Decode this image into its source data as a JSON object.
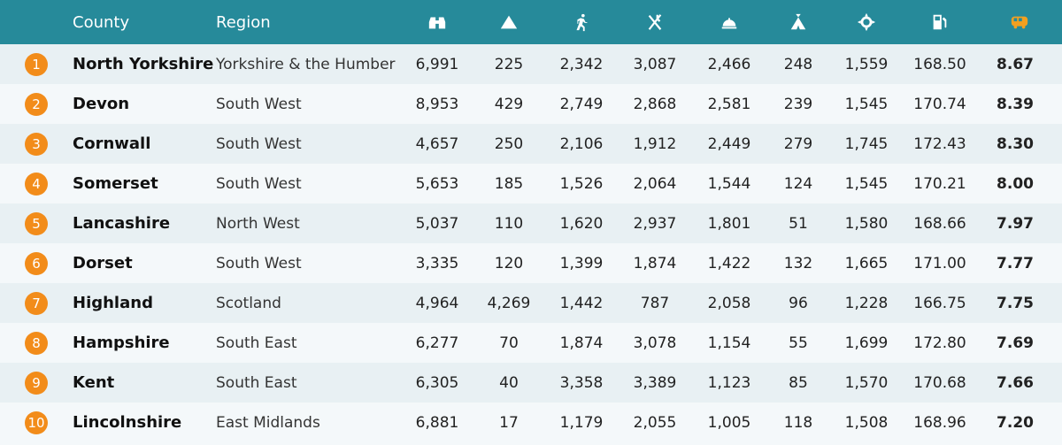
{
  "header": {
    "county": "County",
    "region": "Region",
    "icons": [
      "binoculars-icon",
      "mountain-icon",
      "running-icon",
      "restaurant-icon",
      "hotel-bell-icon",
      "tent-icon",
      "sun-icon",
      "fuel-pump-icon",
      "campervan-icon"
    ],
    "accent": "#268a9a",
    "badge_color": "#f28c1a",
    "score_icon_color": "#f2a020"
  },
  "rows": [
    {
      "rank": "1",
      "county": "North Yorkshire",
      "region": "Yorkshire & the Humber",
      "v": [
        "6,991",
        "225",
        "2,342",
        "3,087",
        "2,466",
        "248",
        "1,559",
        "168.50"
      ],
      "score": "8.67"
    },
    {
      "rank": "2",
      "county": "Devon",
      "region": "South West",
      "v": [
        "8,953",
        "429",
        "2,749",
        "2,868",
        "2,581",
        "239",
        "1,545",
        "170.74"
      ],
      "score": "8.39"
    },
    {
      "rank": "3",
      "county": "Cornwall",
      "region": "South West",
      "v": [
        "4,657",
        "250",
        "2,106",
        "1,912",
        "2,449",
        "279",
        "1,745",
        "172.43"
      ],
      "score": "8.30"
    },
    {
      "rank": "4",
      "county": "Somerset",
      "region": "South West",
      "v": [
        "5,653",
        "185",
        "1,526",
        "2,064",
        "1,544",
        "124",
        "1,545",
        "170.21"
      ],
      "score": "8.00"
    },
    {
      "rank": "5",
      "county": "Lancashire",
      "region": "North West",
      "v": [
        "5,037",
        "110",
        "1,620",
        "2,937",
        "1,801",
        "51",
        "1,580",
        "168.66"
      ],
      "score": "7.97"
    },
    {
      "rank": "6",
      "county": "Dorset",
      "region": "South West",
      "v": [
        "3,335",
        "120",
        "1,399",
        "1,874",
        "1,422",
        "132",
        "1,665",
        "171.00"
      ],
      "score": "7.77"
    },
    {
      "rank": "7",
      "county": "Highland",
      "region": "Scotland",
      "v": [
        "4,964",
        "4,269",
        "1,442",
        "787",
        "2,058",
        "96",
        "1,228",
        "166.75"
      ],
      "score": "7.75"
    },
    {
      "rank": "8",
      "county": "Hampshire",
      "region": "South East",
      "v": [
        "6,277",
        "70",
        "1,874",
        "3,078",
        "1,154",
        "55",
        "1,699",
        "172.80"
      ],
      "score": "7.69"
    },
    {
      "rank": "9",
      "county": "Kent",
      "region": "South East",
      "v": [
        "6,305",
        "40",
        "3,358",
        "3,389",
        "1,123",
        "85",
        "1,570",
        "170.68"
      ],
      "score": "7.66"
    },
    {
      "rank": "10",
      "county": "Lincolnshire",
      "region": "East Midlands",
      "v": [
        "6,881",
        "17",
        "1,179",
        "2,055",
        "1,005",
        "118",
        "1,508",
        "168.96"
      ],
      "score": "7.20"
    }
  ]
}
